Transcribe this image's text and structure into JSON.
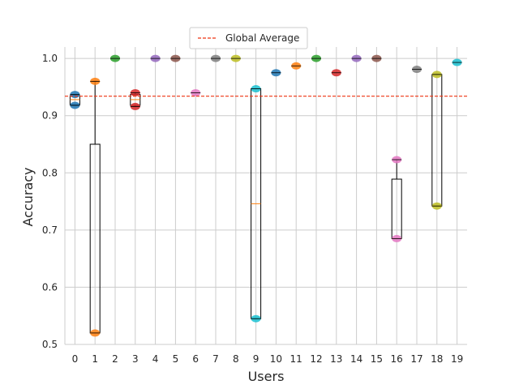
{
  "chart_data": {
    "type": "box",
    "xlabel": "Users",
    "ylabel": "Accuracy",
    "categories": [
      "0",
      "1",
      "2",
      "3",
      "4",
      "5",
      "6",
      "7",
      "8",
      "9",
      "10",
      "11",
      "12",
      "13",
      "14",
      "15",
      "16",
      "17",
      "18",
      "19"
    ],
    "ylim": [
      0.5,
      1.02
    ],
    "yticks": [
      0.5,
      0.6,
      0.7,
      0.8,
      0.9,
      1.0
    ],
    "ytick_labels": [
      "0.5",
      "0.6",
      "0.7",
      "0.8",
      "0.9",
      "1.0"
    ],
    "grid": true,
    "legend": {
      "position": "top-center",
      "entries": [
        "Global Average"
      ]
    },
    "reference_line": {
      "name": "Global Average",
      "value": 0.934,
      "color": "#ee3311",
      "style": "dashed"
    },
    "series": [
      {
        "user": "0",
        "points": [
          0.937,
          0.918
        ],
        "box": {
          "q1": 0.919,
          "median": 0.928,
          "q3": 0.935,
          "whislo": 0.918,
          "whishi": 0.937
        }
      },
      {
        "user": "1",
        "points": [
          0.96,
          0.52
        ],
        "box": {
          "q1": 0.52,
          "median": 0.52,
          "q3": 0.85,
          "whislo": 0.52,
          "whishi": 0.96
        }
      },
      {
        "user": "2",
        "points": [
          1.0
        ],
        "box": null
      },
      {
        "user": "3",
        "points": [
          0.94,
          0.916
        ],
        "box": {
          "q1": 0.918,
          "median": 0.928,
          "q3": 0.937,
          "whislo": 0.916,
          "whishi": 0.94
        }
      },
      {
        "user": "4",
        "points": [
          1.0
        ],
        "box": null
      },
      {
        "user": "5",
        "points": [
          1.0
        ],
        "box": null
      },
      {
        "user": "6",
        "points": [
          0.94
        ],
        "box": null
      },
      {
        "user": "7",
        "points": [
          1.0
        ],
        "box": null
      },
      {
        "user": "8",
        "points": [
          1.0
        ],
        "box": null
      },
      {
        "user": "9",
        "points": [
          0.947,
          0.545
        ],
        "box": {
          "q1": 0.545,
          "median": 0.746,
          "q3": 0.947,
          "whislo": 0.545,
          "whishi": 0.947
        }
      },
      {
        "user": "10",
        "points": [
          0.975
        ],
        "box": null
      },
      {
        "user": "11",
        "points": [
          0.987
        ],
        "box": null
      },
      {
        "user": "12",
        "points": [
          1.0
        ],
        "box": null
      },
      {
        "user": "13",
        "points": [
          0.975
        ],
        "box": null
      },
      {
        "user": "14",
        "points": [
          1.0
        ],
        "box": null
      },
      {
        "user": "15",
        "points": [
          1.0
        ],
        "box": null
      },
      {
        "user": "16",
        "points": [
          0.823,
          0.685
        ],
        "box": {
          "q1": 0.685,
          "median": 0.685,
          "q3": 0.789,
          "whislo": 0.685,
          "whishi": 0.823
        }
      },
      {
        "user": "17",
        "points": [
          0.981
        ],
        "box": null
      },
      {
        "user": "18",
        "points": [
          0.972,
          0.742
        ],
        "box": {
          "q1": 0.742,
          "median": 0.742,
          "q3": 0.972,
          "whislo": 0.742,
          "whishi": 0.972
        }
      },
      {
        "user": "19",
        "points": [
          0.993
        ],
        "box": null
      }
    ],
    "colors": [
      "#1f77b4",
      "#ff7f0e",
      "#2ca02c",
      "#d62728",
      "#9467bd",
      "#8c564b",
      "#e377c2",
      "#7f7f7f",
      "#bcbd22",
      "#17becf",
      "#1f77b4",
      "#ff7f0e",
      "#2ca02c",
      "#d62728",
      "#9467bd",
      "#8c564b",
      "#e377c2",
      "#7f7f7f",
      "#bcbd22",
      "#17becf"
    ],
    "median_color": "#ff7f0e"
  }
}
